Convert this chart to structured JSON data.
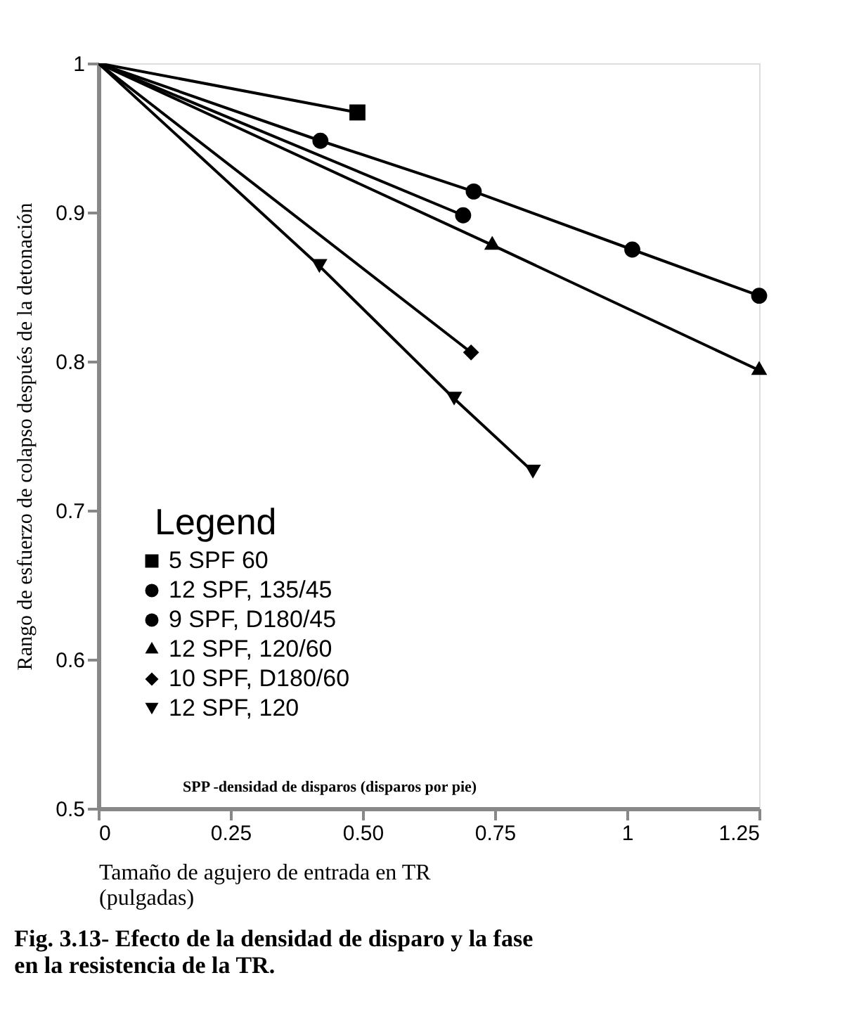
{
  "chart_data": {
    "type": "line",
    "xlabel": "Tamaño de agujero de entrada en TR\n(pulgadas)",
    "ylabel": "Rango de esfuerzo de colapso después de la detonación",
    "legend_title": "Legend",
    "legend": "bottom left",
    "grid": false,
    "xlim": [
      0,
      1.25
    ],
    "xticks": [
      0,
      0.25,
      {
        "value": 0.5,
        "label": "0.50"
      },
      0.75,
      1,
      1.25
    ],
    "ylim": [
      0.5,
      1
    ],
    "yticks": [
      0.5,
      0.6,
      0.7,
      0.8,
      0.9,
      1
    ],
    "annotations": [
      "SPP -densidad de disparos (disparos por pie)",
      "Fig. 3.13- Efecto de la densidad de disparo y la fase\nen la resistencia de la TR."
    ],
    "series": [
      {
        "name": "5 SPF 60",
        "color": "#000000",
        "marker": "square",
        "x": [
          0,
          0.49
        ],
        "values": [
          1,
          0.967
        ]
      },
      {
        "name": "12 SPF, 135/45",
        "color": "#000000",
        "marker": "circle",
        "x": [
          0,
          0.42,
          0.71,
          1.01,
          1.25
        ],
        "values": [
          1,
          0.948,
          0.914,
          0.875,
          0.844
        ]
      },
      {
        "name": "9 SPF, D180/45",
        "color": "#000000",
        "marker": "circle",
        "x": [
          0,
          0.69
        ],
        "values": [
          1,
          0.898
        ]
      },
      {
        "name": "12 SPF, 120/60",
        "color": "#000000",
        "marker": "triangle",
        "x": [
          0,
          0.745,
          1.25
        ],
        "values": [
          1,
          0.878,
          0.794
        ]
      },
      {
        "name": "10 SPF, D180/60",
        "color": "#000000",
        "marker": "diamond",
        "x": [
          0,
          0.705
        ],
        "values": [
          1,
          0.806
        ]
      },
      {
        "name": "12 SPF, 120",
        "color": "#000000",
        "marker": "triangle-down",
        "x": [
          0,
          0.418,
          0.673,
          0.822
        ],
        "values": [
          1,
          0.864,
          0.775,
          0.726
        ]
      }
    ]
  }
}
